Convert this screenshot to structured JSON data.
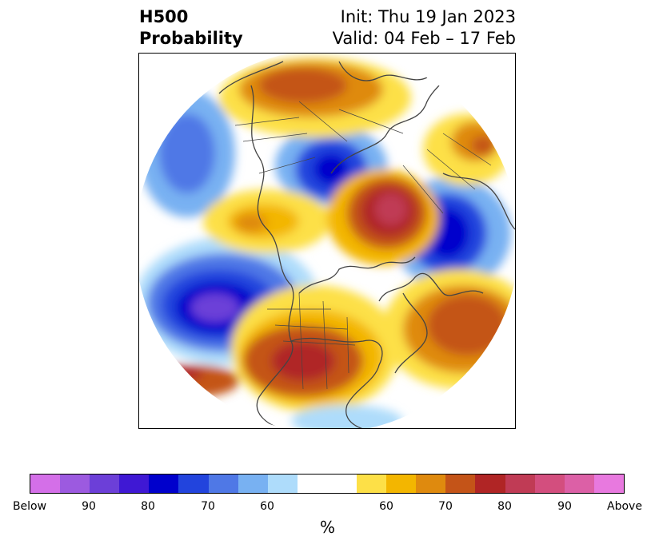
{
  "title": {
    "left_line1": "H500",
    "left_line2": "Probability",
    "right_line1": "Init: Thu 19 Jan 2023",
    "right_line2": "Valid: 04 Feb – 17 Feb"
  },
  "map": {
    "projection": "north-polar-stereographic",
    "boundaries_color": "#444444",
    "anomaly_centers": [
      {
        "name": "gulf-of-alaska-low",
        "sign": "below",
        "probability": 90
      },
      {
        "name": "aleutian-west-low",
        "sign": "below",
        "probability": 70
      },
      {
        "name": "siberia-low",
        "sign": "below",
        "probability": 80
      },
      {
        "name": "eastern-europe-low",
        "sign": "below",
        "probability": 80
      },
      {
        "name": "greenland-high",
        "sign": "above",
        "probability": 85
      },
      {
        "name": "central-us-high",
        "sign": "above",
        "probability": 80
      },
      {
        "name": "north-atlantic-high",
        "sign": "above",
        "probability": 70
      },
      {
        "name": "north-pacific-high",
        "sign": "above",
        "probability": 70
      },
      {
        "name": "east-asia-high",
        "sign": "above",
        "probability": 70
      }
    ]
  },
  "colorbar": {
    "colors": [
      "#d46fe8",
      "#9c5ae0",
      "#6c3fd8",
      "#3f18d4",
      "#0000cc",
      "#2244dd",
      "#4f78e6",
      "#78b1f2",
      "#aedcfb",
      "#ffffff",
      "#fde047",
      "#f3b600",
      "#df8a0e",
      "#c45418",
      "#b02525",
      "#c03b55",
      "#d34e7e",
      "#dc60a6",
      "#e879df"
    ],
    "tick_labels": [
      "Below",
      "90",
      "80",
      "70",
      "60",
      "60",
      "70",
      "80",
      "90",
      "Above"
    ],
    "unit": "%"
  }
}
